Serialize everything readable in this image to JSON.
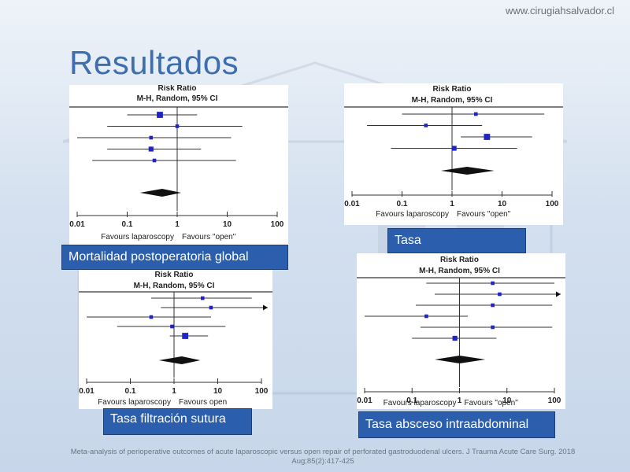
{
  "header": {
    "website": "www.cirugiahsalvador.cl",
    "title": "Resultados"
  },
  "plot_common": {
    "heading": "Risk Ratio",
    "method": "M-H, Random, 95% CI",
    "ticks": [
      "0.01",
      "0.1",
      "1",
      "10",
      "100"
    ],
    "favours_left": "Favours laparoscopy",
    "favours_right": "Favours \"open\"",
    "favours_right_alt": "Favours open"
  },
  "labels": {
    "mortality": "Mortalidad postoperatoria global",
    "rate": "Tasa",
    "leak": "Tasa filtración sutura",
    "abscess": "Tasa absceso intraabdominal"
  },
  "citation": {
    "text": "Meta-analysis of perioperative outcomes of acute laparoscopic versus open repair of perforated gastroduodenal ulcers",
    "journal": "J Trauma Acute Care Surg. 2018 Aug;85(2):417-425"
  },
  "chart_data": [
    {
      "type": "forest",
      "title": "Risk Ratio",
      "subtitle": "M-H, Random, 95% CI",
      "scale": "log",
      "xlim": [
        0.01,
        100
      ],
      "studies": [
        {
          "rr": 0.45,
          "lo": 0.1,
          "hi": 2.5,
          "weight": 3
        },
        {
          "rr": 1.0,
          "lo": 0.04,
          "hi": 20,
          "weight": 1
        },
        {
          "rr": 0.3,
          "lo": 0.01,
          "hi": 12,
          "weight": 1
        },
        {
          "rr": 0.3,
          "lo": 0.04,
          "hi": 3,
          "weight": 2
        },
        {
          "rr": 0.35,
          "lo": 0.02,
          "hi": 15,
          "weight": 1
        }
      ],
      "pooled": {
        "rr": 0.5,
        "lo": 0.18,
        "hi": 1.2
      }
    },
    {
      "type": "forest",
      "title": "Risk Ratio",
      "subtitle": "M-H, Random, 95% CI",
      "scale": "log",
      "xlim": [
        0.01,
        100
      ],
      "studies": [
        {
          "rr": 3.0,
          "lo": 0.1,
          "hi": 70,
          "weight": 1
        },
        {
          "rr": 0.3,
          "lo": 0.02,
          "hi": 4,
          "weight": 1
        },
        {
          "rr": 5.0,
          "lo": 1.5,
          "hi": 40,
          "weight": 3
        },
        {
          "rr": 1.1,
          "lo": 0.06,
          "hi": 20,
          "weight": 2
        }
      ],
      "pooled": {
        "rr": 2.0,
        "lo": 0.6,
        "hi": 7
      }
    },
    {
      "type": "forest",
      "title": "Risk Ratio",
      "subtitle": "M-H, Random, 95% CI",
      "scale": "log",
      "xlim": [
        0.01,
        100
      ],
      "studies": [
        {
          "rr": 4.5,
          "lo": 0.3,
          "hi": 60,
          "weight": 1
        },
        {
          "rr": 7.0,
          "lo": 0.5,
          "hi": 100,
          "weight": 1,
          "arrow": true
        },
        {
          "rr": 0.3,
          "lo": 0.01,
          "hi": 7,
          "weight": 1
        },
        {
          "rr": 0.9,
          "lo": 0.05,
          "hi": 15,
          "weight": 1
        },
        {
          "rr": 1.8,
          "lo": 0.8,
          "hi": 6,
          "weight": 3
        }
      ],
      "pooled": {
        "rr": 1.5,
        "lo": 0.45,
        "hi": 4
      }
    },
    {
      "type": "forest",
      "title": "Risk Ratio",
      "subtitle": "M-H, Random, 95% CI",
      "scale": "log",
      "xlim": [
        0.01,
        100
      ],
      "studies": [
        {
          "rr": 5.0,
          "lo": 0.2,
          "hi": 100,
          "weight": 1
        },
        {
          "rr": 7.0,
          "lo": 0.3,
          "hi": 100,
          "weight": 1,
          "arrow": true
        },
        {
          "rr": 5.0,
          "lo": 0.12,
          "hi": 90,
          "weight": 1
        },
        {
          "rr": 0.2,
          "lo": 0.01,
          "hi": 1.5,
          "weight": 1
        },
        {
          "rr": 5.0,
          "lo": 0.15,
          "hi": 90,
          "weight": 1
        },
        {
          "rr": 0.8,
          "lo": 0.1,
          "hi": 6,
          "weight": 2
        }
      ],
      "pooled": {
        "rr": 1.0,
        "lo": 0.3,
        "hi": 3.5
      }
    }
  ]
}
